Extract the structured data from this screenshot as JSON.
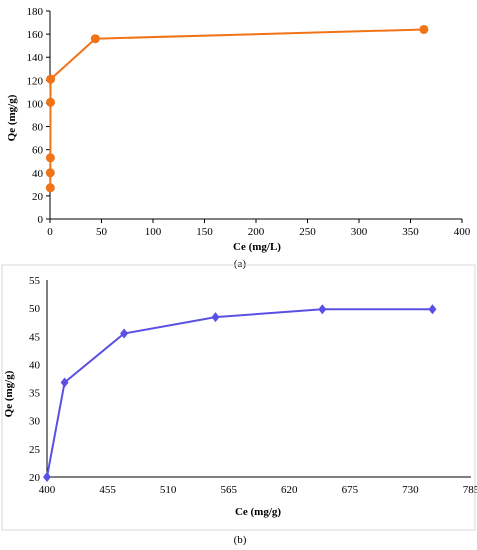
{
  "chart_data": [
    {
      "type": "line",
      "caption": "(a)",
      "xlabel": "Ce (mg/L)",
      "ylabel": "Qe (mg/g)",
      "xlim": [
        0,
        400
      ],
      "ylim": [
        0,
        180
      ],
      "xticks": [
        0,
        50,
        100,
        150,
        200,
        250,
        300,
        350,
        400
      ],
      "yticks": [
        0,
        20,
        40,
        60,
        80,
        100,
        120,
        140,
        160,
        180
      ],
      "grid": false,
      "legend": "none",
      "marker": "circle",
      "color": "#F07318",
      "series": [
        {
          "x": [
            0.3,
            0.3,
            0.4,
            0.5,
            0.6,
            44,
            363
          ],
          "y": [
            27,
            40,
            53,
            101,
            121,
            156,
            164
          ]
        }
      ]
    },
    {
      "type": "line",
      "caption": "(b)",
      "xlabel": "Ce (mg/g)",
      "ylabel": "Qe (mg/g)",
      "xlim": [
        400,
        785
      ],
      "ylim": [
        20,
        55
      ],
      "xticks": [
        400,
        455,
        510,
        565,
        620,
        675,
        730,
        785
      ],
      "yticks": [
        20,
        25,
        30,
        35,
        40,
        45,
        50,
        55
      ],
      "grid": false,
      "legend": "none",
      "marker": "diamond",
      "color": "#5B50E6",
      "series": [
        {
          "x": [
            400,
            416,
            470,
            553,
            650,
            750
          ],
          "y": [
            20,
            36.8,
            45.5,
            48.4,
            49.8,
            49.8
          ]
        }
      ]
    }
  ]
}
